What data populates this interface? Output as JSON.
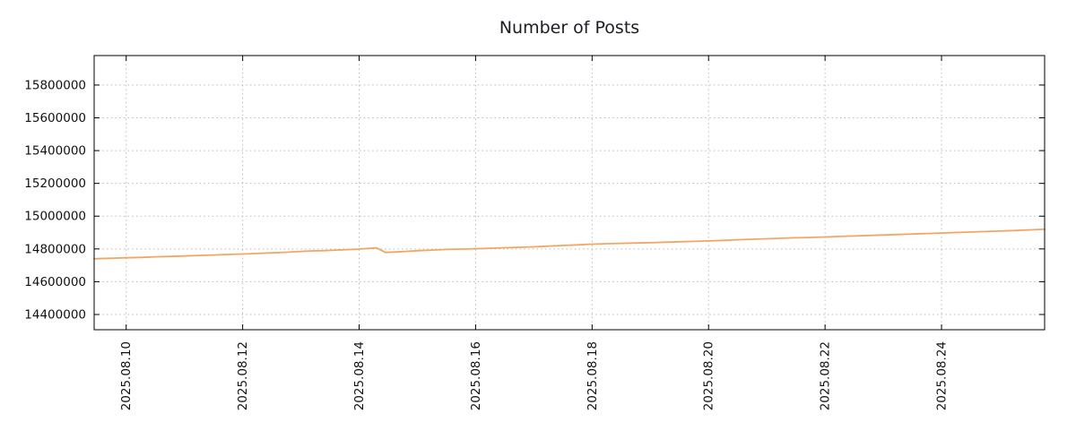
{
  "chart_data": {
    "type": "line",
    "title": "Number of Posts",
    "grid": "dotted",
    "legend": "none",
    "colors": {
      "line": "#f3a664",
      "grid": "#b9b9b9",
      "border": "#000000",
      "text": "#111111"
    },
    "x_axis": {
      "lim": [
        9.45,
        25.77
      ],
      "tick_values": [
        10,
        12,
        14,
        16,
        18,
        20,
        22,
        24
      ],
      "tick_labels": [
        "2025.08.10",
        "2025.08.12",
        "2025.08.14",
        "2025.08.16",
        "2025.08.18",
        "2025.08.20",
        "2025.08.22",
        "2025.08.24"
      ],
      "label_rotation_deg": 90
    },
    "y_axis": {
      "lim": [
        14307000,
        15980000
      ],
      "tick_values": [
        14400000,
        14600000,
        14800000,
        15000000,
        15200000,
        15400000,
        15600000,
        15800000
      ]
    },
    "series": [
      {
        "name": "Number of Posts",
        "color": "#f3a664",
        "x": [
          9.45,
          9.7,
          10.0,
          10.25,
          10.5,
          10.75,
          11.0,
          11.25,
          11.5,
          11.75,
          12.0,
          12.25,
          12.5,
          12.75,
          13.0,
          13.2,
          13.4,
          13.6,
          13.8,
          14.0,
          14.15,
          14.3,
          14.45,
          14.6,
          14.8,
          15.0,
          15.25,
          15.5,
          15.75,
          16.0,
          16.25,
          16.5,
          16.75,
          17.0,
          17.25,
          17.5,
          17.75,
          18.0,
          18.25,
          18.5,
          18.75,
          19.0,
          19.25,
          19.5,
          19.75,
          20.0,
          20.25,
          20.5,
          20.75,
          21.0,
          21.25,
          21.5,
          21.75,
          22.0,
          22.25,
          22.5,
          22.75,
          23.0,
          23.25,
          23.5,
          23.75,
          24.0,
          24.25,
          24.5,
          24.75,
          25.0,
          25.25,
          25.5,
          25.77
        ],
        "values": [
          14740000,
          14743000,
          14746000,
          14748000,
          14752000,
          14754000,
          14757000,
          14760000,
          14763000,
          14766000,
          14769000,
          14772000,
          14776000,
          14780000,
          14785000,
          14788000,
          14790000,
          14793000,
          14796000,
          14799000,
          14803000,
          14806000,
          14779000,
          14781000,
          14785000,
          14789000,
          14793000,
          14797000,
          14799000,
          14801000,
          14804000,
          14807000,
          14810000,
          14813000,
          14817000,
          14821000,
          14825000,
          14829000,
          14832000,
          14834000,
          14836000,
          14838000,
          14841000,
          14844000,
          14846000,
          14849000,
          14852000,
          14856000,
          14859000,
          14862000,
          14865000,
          14868000,
          14870000,
          14873000,
          14876000,
          14879000,
          14882000,
          14885000,
          14888000,
          14891000,
          14894000,
          14897000,
          14900000,
          14903000,
          14906000,
          14909000,
          14912000,
          14916000,
          14920000
        ]
      }
    ]
  }
}
